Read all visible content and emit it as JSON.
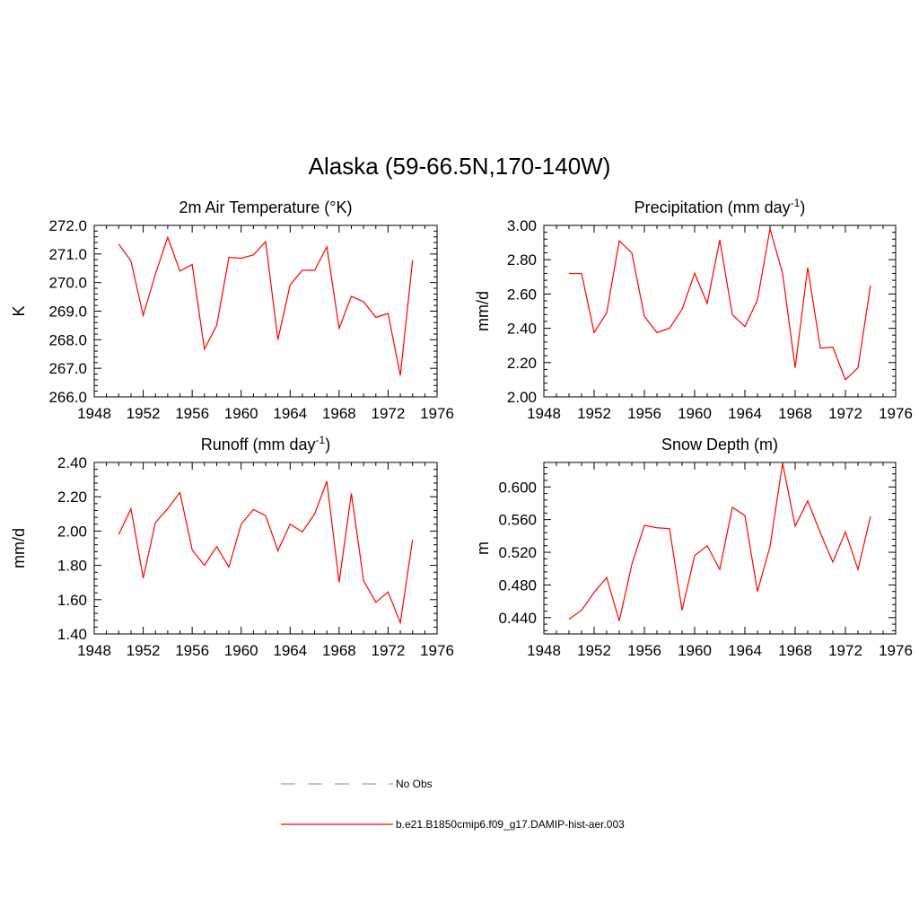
{
  "figure_title": "Alaska (59-66.5N,170-140W)",
  "legend": [
    {
      "label": "No Obs",
      "color": "#9999ff",
      "dash": true
    },
    {
      "label": "b.e21.B1850cmip6.f09_g17.DAMIP-hist-aer.003",
      "color": "#ff0000",
      "dash": false
    }
  ],
  "chart_data": [
    {
      "type": "line",
      "title": "2m Air Temperature",
      "title_unit": "(°K)",
      "ylabel": "K",
      "xlim": [
        1948,
        1976
      ],
      "ylim": [
        266.0,
        272.0
      ],
      "xticks": [
        "1948",
        "1952",
        "1956",
        "1960",
        "1964",
        "1968",
        "1972",
        "1976"
      ],
      "yticks": [
        "266.0",
        "267.0",
        "268.0",
        "269.0",
        "270.0",
        "271.0",
        "272.0"
      ],
      "x": [
        1950,
        1951,
        1952,
        1953,
        1954,
        1955,
        1956,
        1957,
        1958,
        1959,
        1960,
        1961,
        1962,
        1963,
        1964,
        1965,
        1966,
        1967,
        1968,
        1969,
        1970,
        1971,
        1972,
        1973,
        1974
      ],
      "series": [
        {
          "color": "#ff0000",
          "values": [
            271.35,
            270.75,
            268.85,
            270.3,
            271.58,
            270.4,
            270.63,
            267.67,
            268.5,
            270.88,
            270.85,
            270.97,
            271.43,
            268.0,
            269.92,
            270.43,
            270.43,
            271.25,
            268.4,
            269.52,
            269.33,
            268.78,
            268.92,
            266.75,
            270.78
          ]
        }
      ]
    },
    {
      "type": "line",
      "title": "Precipitation (mm day",
      "title_sup": "-1",
      "title_tail": ")",
      "ylabel": "mm/d",
      "xlim": [
        1948,
        1976
      ],
      "ylim": [
        2.0,
        3.0
      ],
      "xticks": [
        "1948",
        "1952",
        "1956",
        "1960",
        "1964",
        "1968",
        "1972",
        "1976"
      ],
      "yticks": [
        "2.00",
        "2.20",
        "2.40",
        "2.60",
        "2.80",
        "3.00"
      ],
      "x": [
        1950,
        1951,
        1952,
        1953,
        1954,
        1955,
        1956,
        1957,
        1958,
        1959,
        1960,
        1961,
        1962,
        1963,
        1964,
        1965,
        1966,
        1967,
        1968,
        1969,
        1970,
        1971,
        1972,
        1973,
        1974
      ],
      "series": [
        {
          "color": "#ff0000",
          "values": [
            2.72,
            2.72,
            2.375,
            2.49,
            2.91,
            2.84,
            2.47,
            2.375,
            2.4,
            2.51,
            2.72,
            2.545,
            2.915,
            2.48,
            2.41,
            2.565,
            2.98,
            2.72,
            2.17,
            2.755,
            2.285,
            2.29,
            2.1,
            2.17,
            2.65
          ]
        }
      ]
    },
    {
      "type": "line",
      "title": "Runoff (mm day",
      "title_sup": "-1",
      "title_tail": ")",
      "ylabel": "mm/d",
      "xlim": [
        1948,
        1976
      ],
      "ylim": [
        1.4,
        2.4
      ],
      "xticks": [
        "1948",
        "1952",
        "1956",
        "1960",
        "1964",
        "1968",
        "1972",
        "1976"
      ],
      "yticks": [
        "1.40",
        "1.60",
        "1.80",
        "2.00",
        "2.20",
        "2.40"
      ],
      "x": [
        1950,
        1951,
        1952,
        1953,
        1954,
        1955,
        1956,
        1957,
        1958,
        1959,
        1960,
        1961,
        1962,
        1963,
        1964,
        1965,
        1966,
        1967,
        1968,
        1969,
        1970,
        1971,
        1972,
        1973,
        1974
      ],
      "series": [
        {
          "color": "#ff0000",
          "values": [
            1.98,
            2.13,
            1.725,
            2.05,
            2.13,
            2.225,
            1.89,
            1.8,
            1.91,
            1.79,
            2.04,
            2.125,
            2.09,
            1.885,
            2.04,
            1.995,
            2.1,
            2.29,
            1.7,
            2.22,
            1.71,
            1.585,
            1.645,
            1.465,
            1.95
          ]
        }
      ]
    },
    {
      "type": "line",
      "title": "Snow Depth (m)",
      "ylabel": "m",
      "xlim": [
        1948,
        1976
      ],
      "ylim": [
        0.42,
        0.63
      ],
      "xticks": [
        "1948",
        "1952",
        "1956",
        "1960",
        "1964",
        "1968",
        "1972",
        "1976"
      ],
      "yticks": [
        "0.440",
        "0.480",
        "0.520",
        "0.560",
        "0.600"
      ],
      "x": [
        1950,
        1951,
        1952,
        1953,
        1954,
        1955,
        1956,
        1957,
        1958,
        1959,
        1960,
        1961,
        1962,
        1963,
        1964,
        1965,
        1966,
        1967,
        1968,
        1969,
        1970,
        1971,
        1972,
        1973,
        1974
      ],
      "series": [
        {
          "color": "#ff0000",
          "values": [
            0.438,
            0.449,
            0.471,
            0.489,
            0.436,
            0.505,
            0.553,
            0.55,
            0.549,
            0.449,
            0.516,
            0.528,
            0.499,
            0.575,
            0.565,
            0.472,
            0.527,
            0.629,
            0.552,
            0.583,
            0.544,
            0.508,
            0.545,
            0.499,
            0.564
          ]
        }
      ]
    }
  ]
}
